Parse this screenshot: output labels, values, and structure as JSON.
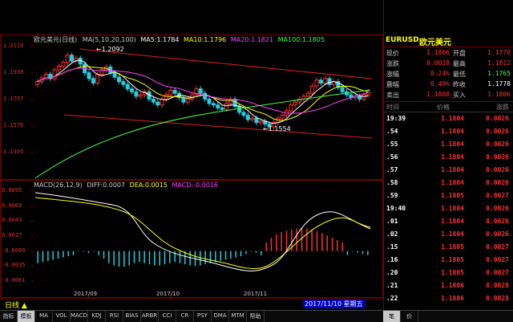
{
  "window": {
    "main_indicator": "MA(5,10,20,100)",
    "ma5": "MA5:1.1784",
    "ma10": "MA10:1.1796",
    "ma20": "MA20:1.1821",
    "ma100": "MA100:1.1805",
    "pair_cn": "欧元美元(日线)",
    "macd_line": "MACD(26,12,9)",
    "diff": "DIFF:0.0007",
    "dea": "DEA:0.0015",
    "macd": "MACD:-0.0016",
    "period_label": "日线",
    "date_badge": "2017/11/10 星期五"
  },
  "price_axis": [
    "1.2119",
    "1.1938",
    "1.1757",
    "1.1576",
    "1.1395"
  ],
  "macd_axis": [
    "0.0095",
    "0.0069",
    "0.0043",
    "0.0017",
    "-0.0009",
    "-0.0035",
    "-0.0061"
  ],
  "x_axis": [
    "2017/09",
    "2017/10",
    "2017/11"
  ],
  "annotations": {
    "high": "1.2092",
    "low": "1.1554"
  },
  "toolbar_tabs": [
    "指标",
    "模板",
    "MA",
    "VOL",
    "MACD",
    "KDJ",
    "RSI",
    "BIAS",
    "ARBR",
    "CCI",
    "CR",
    "PSY",
    "DMA",
    "MTM",
    "帮助"
  ],
  "right_toolbar": [
    "笔",
    "价"
  ],
  "panel": {
    "symbol": "EURUSD",
    "name": "欧元美元",
    "quote_rows": [
      {
        "k1": "现价",
        "v1": "1.1806",
        "k2": "开盘",
        "v2": "1.1770"
      },
      {
        "k1": "涨跌",
        "v1": "0.0028",
        "k2": "最高",
        "v2": "1.1812"
      },
      {
        "k1": "涨幅",
        "v1": "0.24%",
        "k2": "最低",
        "v2": "1.1765"
      },
      {
        "k1": "震幅",
        "v1": "0.40%",
        "k2": "昨收",
        "v2": "1.1778"
      },
      {
        "k1": "卖出",
        "v1": "1.1808",
        "k2": "买入",
        "v2": "1.1806"
      }
    ],
    "cols": {
      "time": "时间",
      "price": "价格",
      "change": "涨跌"
    },
    "ticks": [
      {
        "t": "19:39",
        "p": "1.1804",
        "c": "0.0026"
      },
      {
        "t": ".54",
        "p": "1.1804",
        "c": "0.0026"
      },
      {
        "t": ".55",
        "p": "1.1804",
        "c": "0.0026"
      },
      {
        "t": ".56",
        "p": "1.1804",
        "c": "0.0026"
      },
      {
        "t": ".57",
        "p": "1.1804",
        "c": "0.0026"
      },
      {
        "t": ".58",
        "p": "1.1804",
        "c": "0.0026"
      },
      {
        "t": ".59",
        "p": "1.1805",
        "c": "0.0027"
      },
      {
        "t": "19:40",
        "p": "1.1804",
        "c": "0.0026"
      },
      {
        "t": ".01",
        "p": "1.1804",
        "c": "0.0026"
      },
      {
        "t": ".02",
        "p": "1.1804",
        "c": "0.0026"
      },
      {
        "t": ".15",
        "p": "1.1805",
        "c": "0.0027"
      },
      {
        "t": ".16",
        "p": "1.1805",
        "c": "0.0027"
      },
      {
        "t": ".20",
        "p": "1.1805",
        "c": "0.0027"
      },
      {
        "t": ".21",
        "p": "1.1806",
        "c": "0.0028"
      },
      {
        "t": ".22",
        "p": "1.1806",
        "c": "0.0028"
      }
    ]
  },
  "colors": {
    "up": "#ff3030",
    "down": "#20d0e0",
    "ma5": "#ffffff",
    "ma10": "#ffff00",
    "ma20": "#ff40ff",
    "ma100": "#40ff40"
  }
}
